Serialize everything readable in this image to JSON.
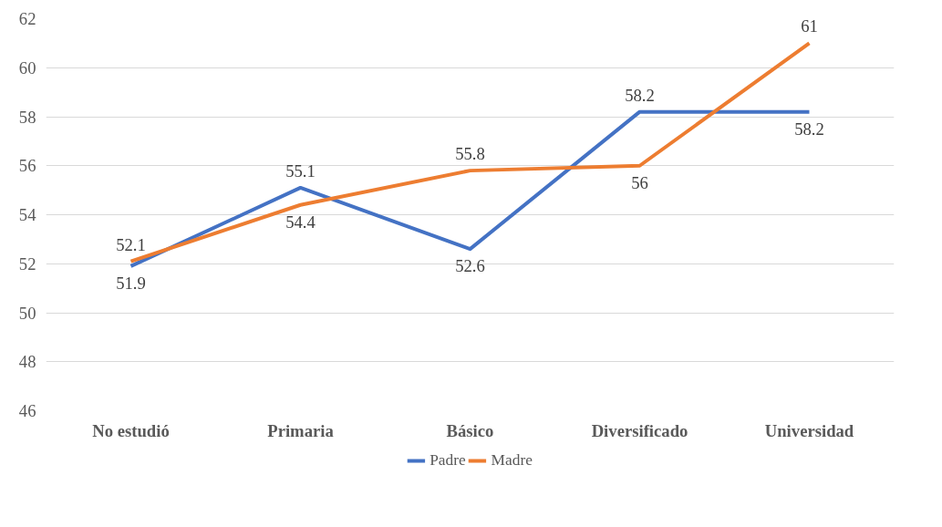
{
  "chart_data": {
    "type": "line",
    "categories": [
      "No estudió",
      "Primaria",
      "Básico",
      "Diversificado",
      "Universidad"
    ],
    "series": [
      {
        "name": "Padre",
        "color": "#4472c4",
        "values": [
          51.9,
          55.1,
          52.6,
          58.2,
          58.2
        ]
      },
      {
        "name": "Madre",
        "color": "#ed7d31",
        "values": [
          52.1,
          54.4,
          55.8,
          56,
          61
        ]
      }
    ],
    "ylim": [
      46,
      62
    ],
    "yticks": [
      46,
      48,
      50,
      52,
      54,
      56,
      58,
      60,
      62
    ],
    "grid": "y",
    "legend": "bottom",
    "data_labels": true,
    "marker": "none",
    "line_style": "solid"
  }
}
